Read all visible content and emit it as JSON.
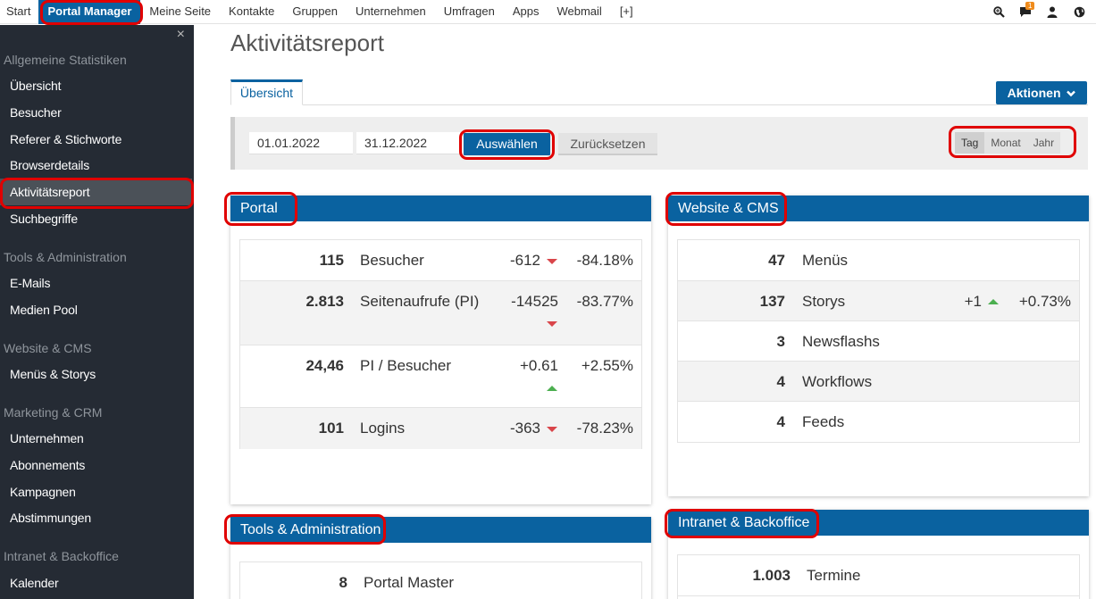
{
  "topnav": {
    "items": [
      "Start",
      "Portal Manager",
      "Meine Seite",
      "Kontakte",
      "Gruppen",
      "Unternehmen",
      "Umfragen",
      "Apps",
      "Webmail",
      "[+]"
    ],
    "notification_count": "1"
  },
  "sidebar": {
    "close": "×",
    "sections": [
      {
        "title": "Allgemeine Statistiken",
        "items": [
          "Übersicht",
          "Besucher",
          "Referer & Stichworte",
          "Browserdetails",
          "Aktivitätsreport",
          "Suchbegriffe"
        ]
      },
      {
        "title": "Tools & Administration",
        "items": [
          "E-Mails",
          "Medien Pool"
        ]
      },
      {
        "title": "Website & CMS",
        "items": [
          "Menüs & Storys"
        ]
      },
      {
        "title": "Marketing & CRM",
        "items": [
          "Unternehmen",
          "Abonnements",
          "Kampagnen",
          "Abstimmungen"
        ]
      },
      {
        "title": "Intranet & Backoffice",
        "items": [
          "Kalender"
        ]
      }
    ]
  },
  "main": {
    "title": "Aktivitätsreport",
    "tab": "Übersicht",
    "actions_label": "Aktionen",
    "filter": {
      "date_from": "01.01.2022",
      "date_to": "31.12.2022",
      "select_label": "Auswählen",
      "reset_label": "Zurücksetzen",
      "periods": [
        "Tag",
        "Monat",
        "Jahr"
      ]
    }
  },
  "panels": {
    "portal": {
      "title": "Portal",
      "rows": [
        {
          "value": "115",
          "label": "Besucher",
          "change": "-612",
          "trend": "down",
          "percent": "-84.18%"
        },
        {
          "value": "2.813",
          "label": "Seitenaufrufe (PI)",
          "change": "-14525",
          "trend": "down",
          "percent": "-83.77%"
        },
        {
          "value": "24,46",
          "label": "PI / Besucher",
          "change": "+0.61",
          "trend": "up",
          "percent": "+2.55%"
        },
        {
          "value": "101",
          "label": "Logins",
          "change": "-363",
          "trend": "down",
          "percent": "-78.23%"
        }
      ]
    },
    "website": {
      "title": "Website & CMS",
      "rows": [
        {
          "value": "47",
          "label": "Menüs"
        },
        {
          "value": "137",
          "label": "Storys",
          "change": "+1",
          "trend": "up",
          "percent": "+0.73%"
        },
        {
          "value": "3",
          "label": "Newsflashs"
        },
        {
          "value": "4",
          "label": "Workflows"
        },
        {
          "value": "4",
          "label": "Feeds"
        }
      ]
    },
    "tools": {
      "title": "Tools & Administration",
      "rows": [
        {
          "value": "8",
          "label": "Portal Master"
        }
      ]
    },
    "intranet": {
      "title": "Intranet & Backoffice",
      "rows": [
        {
          "value": "1.003",
          "label": "Termine"
        }
      ]
    }
  },
  "colors": {
    "primary": "#0a62a0",
    "sidebar": "#252b34",
    "highlight": "#e00000",
    "down": "#d9454a",
    "up": "#4caf50"
  }
}
